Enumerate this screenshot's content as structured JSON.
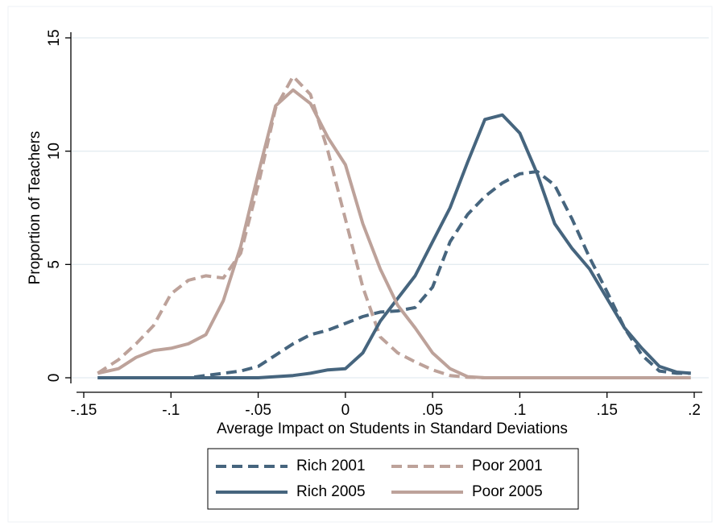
{
  "chart_data": {
    "type": "line",
    "x_label": "Average Impact on Students in Standard Deviations",
    "y_label": "Proportion of Teachers",
    "x": [
      -0.142,
      -0.13,
      -0.12,
      -0.11,
      -0.1,
      -0.09,
      -0.08,
      -0.07,
      -0.06,
      -0.05,
      -0.04,
      -0.03,
      -0.02,
      -0.01,
      0,
      0.01,
      0.02,
      0.03,
      0.04,
      0.05,
      0.06,
      0.07,
      0.08,
      0.09,
      0.1,
      0.11,
      0.12,
      0.13,
      0.14,
      0.15,
      0.16,
      0.17,
      0.18,
      0.19,
      0.198
    ],
    "series": [
      {
        "name": "Rich 2001",
        "color": "#46657e",
        "style": "dashed",
        "values": [
          0,
          0,
          0,
          0,
          0,
          0,
          0.1,
          0.2,
          0.3,
          0.5,
          1.0,
          1.5,
          1.9,
          2.1,
          2.4,
          2.7,
          2.9,
          2.95,
          3.1,
          4.0,
          6.0,
          7.2,
          8.0,
          8.6,
          9.0,
          9.1,
          8.5,
          7.0,
          5.3,
          3.8,
          2.2,
          1.0,
          0.3,
          0.2,
          0.2
        ]
      },
      {
        "name": "Poor 2001",
        "color": "#bda29a",
        "style": "dashed",
        "values": [
          0.2,
          0.8,
          1.5,
          2.3,
          3.7,
          4.3,
          4.5,
          4.4,
          5.5,
          8.5,
          11.9,
          13.3,
          12.5,
          10.0,
          7.0,
          4.0,
          1.8,
          1.1,
          0.7,
          0.35,
          0.1,
          0.02,
          0,
          0,
          0,
          0,
          0,
          0,
          0,
          0,
          0,
          0,
          0,
          0,
          0
        ]
      },
      {
        "name": "Rich 2005",
        "color": "#46657e",
        "style": "solid",
        "values": [
          0,
          0,
          0,
          0,
          0,
          0,
          0,
          0,
          0,
          0,
          0.05,
          0.1,
          0.2,
          0.35,
          0.4,
          1.1,
          2.5,
          3.5,
          4.5,
          6.0,
          7.5,
          9.5,
          11.4,
          11.6,
          10.8,
          9.0,
          6.8,
          5.7,
          4.8,
          3.5,
          2.2,
          1.3,
          0.5,
          0.25,
          0.2
        ]
      },
      {
        "name": "Poor 2005",
        "color": "#bda29a",
        "style": "solid",
        "values": [
          0.2,
          0.4,
          0.9,
          1.2,
          1.3,
          1.5,
          1.9,
          3.4,
          5.8,
          9.0,
          12.0,
          12.7,
          12.1,
          10.6,
          9.4,
          6.8,
          4.8,
          3.2,
          2.2,
          1.1,
          0.4,
          0.05,
          0,
          0,
          0,
          0,
          0,
          0,
          0,
          0,
          0,
          0,
          0,
          0,
          0
        ]
      }
    ],
    "xlim": [
      -0.15,
      0.2
    ],
    "xticks": [
      {
        "value": -0.15,
        "label": "-.15"
      },
      {
        "value": -0.1,
        "label": "-.1"
      },
      {
        "value": -0.05,
        "label": "-.05"
      },
      0,
      {
        "value": 0.05,
        "label": ".05"
      },
      {
        "value": 0.1,
        "label": ".1"
      },
      {
        "value": 0.15,
        "label": ".15"
      },
      {
        "value": 0.2,
        "label": ".2"
      }
    ],
    "ylim": [
      0,
      15
    ],
    "yticks": [
      0,
      5,
      10,
      15
    ],
    "grid": true,
    "legend": "bottom"
  }
}
